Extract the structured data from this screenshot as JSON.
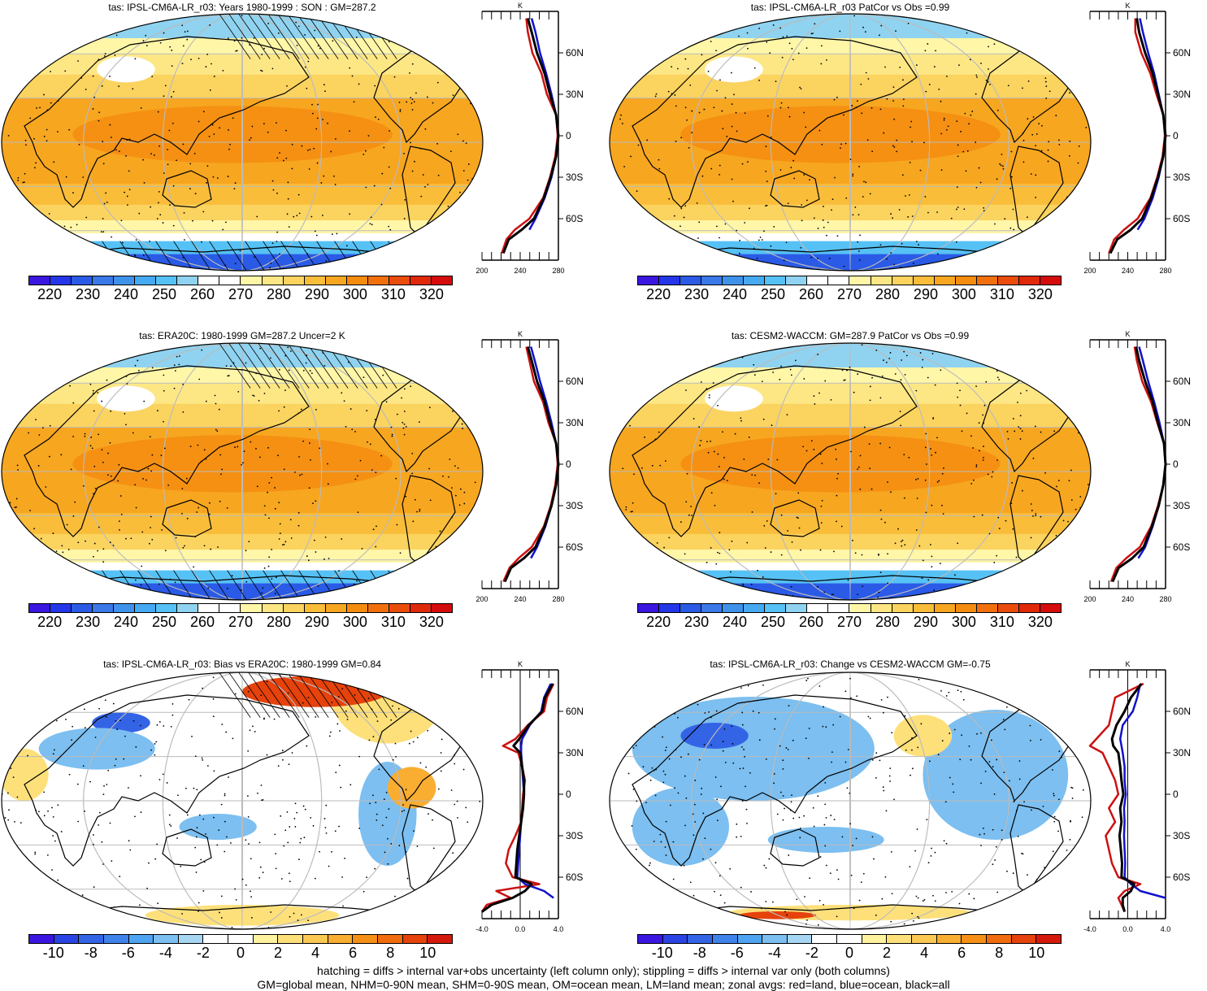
{
  "colors": {
    "abs_palette": [
      "#3b16e0",
      "#2436e8",
      "#2a5ae6",
      "#3b78e8",
      "#3f92ea",
      "#46aaf2",
      "#56c1f5",
      "#8fd3f0",
      "#ffffff",
      "#ffffff",
      "#fff6a8",
      "#fde785",
      "#fbd35f",
      "#f9bd3a",
      "#f7a620",
      "#f58c10",
      "#f1700d",
      "#ea4c0c",
      "#e0280b",
      "#d40c0c"
    ],
    "diff_palette": [
      "#3b16e0",
      "#2a44e4",
      "#3464e6",
      "#3f82ea",
      "#4ea4f0",
      "#7cbff0",
      "#a6d6f2",
      "#ffffff",
      "#ffffff",
      "#fff3a0",
      "#fde07a",
      "#fbc853",
      "#f9ad31",
      "#f58f16",
      "#f06c0e",
      "#e5420c",
      "#d41a0c"
    ],
    "land_line": "#cc1111",
    "ocean_line": "#1111cc",
    "all_line": "#000000",
    "grid": "#bbbbbb"
  },
  "panels": [
    {
      "title": "tas: IPSL-CM6A-LR_r03: Years 1980-1999 : SON : GM=287.2",
      "cbar_labels": [
        "220",
        "230",
        "240",
        "250",
        "260",
        "270",
        "280",
        "290",
        "300",
        "310",
        "320"
      ],
      "zonal_unit": "K",
      "zonal_xticks": [
        "200",
        "240",
        "280"
      ],
      "zonal_yticks": [
        "60N",
        "30N",
        "0",
        "30S",
        "60S"
      ]
    },
    {
      "title": "tas: IPSL-CM6A-LR_r03 PatCor vs Obs =0.99",
      "cbar_labels": [
        "220",
        "230",
        "240",
        "250",
        "260",
        "270",
        "280",
        "290",
        "300",
        "310",
        "320"
      ],
      "zonal_unit": "K",
      "zonal_xticks": [
        "200",
        "240",
        "280"
      ],
      "zonal_yticks": [
        "60N",
        "30N",
        "0",
        "30S",
        "60S"
      ]
    },
    {
      "title": "tas: ERA20C: 1980-1999 GM=287.2 Uncer=2 K",
      "cbar_labels": [
        "220",
        "230",
        "240",
        "250",
        "260",
        "270",
        "280",
        "290",
        "300",
        "310",
        "320"
      ],
      "zonal_unit": "K",
      "zonal_xticks": [
        "200",
        "240",
        "280"
      ],
      "zonal_yticks": [
        "60N",
        "30N",
        "0",
        "30S",
        "60S"
      ]
    },
    {
      "title": "tas: CESM2-WACCM: GM=287.9 PatCor vs Obs =0.99",
      "cbar_labels": [
        "220",
        "230",
        "240",
        "250",
        "260",
        "270",
        "280",
        "290",
        "300",
        "310",
        "320"
      ],
      "zonal_unit": "K",
      "zonal_xticks": [
        "200",
        "240",
        "280"
      ],
      "zonal_yticks": [
        "60N",
        "30N",
        "0",
        "30S",
        "60S"
      ]
    },
    {
      "title": "tas: IPSL-CM6A-LR_r03: Bias vs ERA20C: 1980-1999  GM=0.84",
      "cbar_labels": [
        "-10",
        "-8",
        "-6",
        "-4",
        "-2",
        "0",
        "2",
        "4",
        "6",
        "8",
        "10"
      ],
      "zonal_unit": "K",
      "zonal_xticks": [
        "-4.0",
        "0.0",
        "4.0"
      ],
      "zonal_yticks": [
        "60N",
        "30N",
        "0",
        "30S",
        "60S"
      ]
    },
    {
      "title": "tas: IPSL-CM6A-LR_r03: Change vs CESM2-WACCM GM=-0.75",
      "cbar_labels": [
        "-10",
        "-8",
        "-6",
        "-4",
        "-2",
        "0",
        "2",
        "4",
        "6",
        "8",
        "10"
      ],
      "zonal_unit": "K",
      "zonal_xticks": [
        "-4.0",
        "0.0",
        "4.0"
      ],
      "zonal_yticks": [
        "60N",
        "30N",
        "0",
        "30S",
        "60S"
      ]
    }
  ],
  "footer": {
    "line1": "hatching = diffs > internal var+obs uncertainty (left column only); stippling = diffs > internal var only (both columns)",
    "line2": "GM=global mean, NHM=0-90N mean, SHM=0-90S mean, OM=ocean mean, LM=land mean; zonal avgs: red=land, blue=ocean, black=all"
  },
  "chart_data": [
    {
      "type": "line",
      "title": "tas: IPSL-CM6A-LR_r03: Years 1980-1999 : SON : GM=287.2",
      "xlabel": "K",
      "xlim": [
        200,
        300
      ],
      "ylim": [
        -90,
        90
      ],
      "y_ticks": [
        60,
        30,
        0,
        -30,
        -60
      ],
      "y": [
        85,
        75,
        60,
        45,
        30,
        15,
        0,
        -15,
        -30,
        -45,
        -60,
        -68,
        -75,
        -85
      ],
      "series": [
        {
          "name": "land",
          "values": [
            258,
            260,
            266,
            278,
            285,
            297,
            299,
            296,
            289,
            280,
            262,
            243,
            232,
            226
          ]
        },
        {
          "name": "ocean",
          "values": [
            265,
            270,
            276,
            284,
            291,
            297,
            300,
            297,
            291,
            282,
            270,
            262,
            null,
            null
          ]
        },
        {
          "name": "all",
          "values": [
            260,
            265,
            272,
            282,
            289,
            297,
            300,
            297,
            290,
            281,
            268,
            252,
            235,
            228
          ]
        }
      ]
    },
    {
      "type": "line",
      "title": "tas: IPSL-CM6A-LR_r03 PatCor vs Obs =0.99",
      "xlabel": "K",
      "xlim": [
        200,
        300
      ],
      "ylim": [
        -90,
        90
      ],
      "y_ticks": [
        60,
        30,
        0,
        -30,
        -60
      ],
      "y": [
        85,
        75,
        60,
        45,
        30,
        15,
        0,
        -15,
        -30,
        -45,
        -60,
        -68,
        -75,
        -85
      ],
      "series": [
        {
          "name": "land",
          "values": [
            260,
            260,
            268,
            280,
            288,
            297,
            299,
            296,
            289,
            280,
            263,
            245,
            232,
            225
          ]
        },
        {
          "name": "ocean",
          "values": [
            266,
            270,
            277,
            285,
            291,
            297,
            300,
            297,
            291,
            283,
            272,
            263,
            null,
            null
          ]
        },
        {
          "name": "all",
          "values": [
            262,
            265,
            273,
            283,
            290,
            297,
            300,
            297,
            290,
            281,
            269,
            254,
            236,
            227
          ]
        }
      ]
    },
    {
      "type": "line",
      "title": "tas: ERA20C: 1980-1999 GM=287.2 Uncer=2 K",
      "xlabel": "K",
      "xlim": [
        200,
        300
      ],
      "ylim": [
        -90,
        90
      ],
      "y_ticks": [
        60,
        30,
        0,
        -30,
        -60
      ],
      "y": [
        85,
        75,
        60,
        45,
        30,
        15,
        0,
        -15,
        -30,
        -45,
        -60,
        -68,
        -75,
        -85
      ],
      "series": [
        {
          "name": "land",
          "values": [
            258,
            262,
            268,
            280,
            287,
            297,
            299,
            296,
            290,
            281,
            265,
            248,
            236,
            228
          ]
        },
        {
          "name": "ocean",
          "values": [
            264,
            269,
            276,
            284,
            291,
            297,
            300,
            297,
            291,
            283,
            272,
            264,
            null,
            null
          ]
        },
        {
          "name": "all",
          "values": [
            260,
            265,
            272,
            282,
            289,
            297,
            300,
            297,
            291,
            282,
            270,
            255,
            238,
            230
          ]
        }
      ]
    },
    {
      "type": "line",
      "title": "tas: CESM2-WACCM: GM=287.9 PatCor vs Obs =0.99",
      "xlabel": "K",
      "xlim": [
        200,
        300
      ],
      "ylim": [
        -90,
        90
      ],
      "y_ticks": [
        60,
        30,
        0,
        -30,
        -60
      ],
      "y": [
        85,
        75,
        60,
        45,
        30,
        15,
        0,
        -15,
        -30,
        -45,
        -60,
        -68,
        -75,
        -85
      ],
      "series": [
        {
          "name": "land",
          "values": [
            259,
            262,
            269,
            281,
            289,
            298,
            300,
            297,
            290,
            281,
            266,
            248,
            235,
            228
          ]
        },
        {
          "name": "ocean",
          "values": [
            265,
            270,
            277,
            285,
            292,
            298,
            300,
            297,
            291,
            283,
            273,
            264,
            null,
            null
          ]
        },
        {
          "name": "all",
          "values": [
            261,
            265,
            273,
            283,
            290,
            298,
            300,
            297,
            291,
            282,
            271,
            256,
            238,
            230
          ]
        }
      ]
    },
    {
      "type": "line",
      "title": "tas: IPSL-CM6A-LR_r03: Bias vs ERA20C: 1980-1999  GM=0.84",
      "xlabel": "K",
      "xlim": [
        -4,
        4
      ],
      "ylim": [
        -90,
        90
      ],
      "y_ticks": [
        60,
        30,
        0,
        -30,
        -60
      ],
      "y": [
        80,
        70,
        60,
        50,
        40,
        35,
        30,
        20,
        10,
        0,
        -10,
        -20,
        -30,
        -40,
        -50,
        -60,
        -65,
        -70,
        -75,
        -80,
        -85
      ],
      "series": [
        {
          "name": "land",
          "values": [
            3.5,
            2.8,
            2.5,
            0.8,
            -0.5,
            -1.8,
            -0.2,
            0.2,
            0.5,
            0.3,
            0.2,
            0.1,
            -0.5,
            -1.2,
            -1.5,
            -0.8,
            2.0,
            -2.5,
            -1.0,
            -3.5,
            -4.0
          ]
        },
        {
          "name": "ocean",
          "values": [
            3.2,
            2.5,
            2.2,
            1.0,
            0.2,
            0.1,
            0.1,
            0.2,
            0.3,
            0.4,
            0.3,
            0.1,
            0.0,
            -0.1,
            -0.2,
            -0.3,
            0.5,
            2.5,
            3.5,
            null,
            null
          ]
        },
        {
          "name": "all",
          "values": [
            3.4,
            2.6,
            2.3,
            0.9,
            -0.1,
            -0.7,
            0.0,
            0.2,
            0.4,
            0.4,
            0.3,
            0.1,
            -0.1,
            -0.3,
            -0.4,
            -0.5,
            1.2,
            0.5,
            -0.8,
            -3.0,
            -4.0
          ]
        }
      ]
    },
    {
      "type": "line",
      "title": "tas: IPSL-CM6A-LR_r03: Change vs CESM2-WACCM GM=-0.75",
      "xlabel": "K",
      "xlim": [
        -6,
        6
      ],
      "ylim": [
        -90,
        90
      ],
      "y_ticks": [
        60,
        30,
        0,
        -30,
        -60
      ],
      "y": [
        80,
        70,
        60,
        50,
        40,
        35,
        30,
        20,
        10,
        0,
        -10,
        -20,
        -30,
        -40,
        -50,
        -60,
        -65,
        -70,
        -75,
        -80,
        -85
      ],
      "series": [
        {
          "name": "land",
          "values": [
            2.5,
            -2.0,
            -2.5,
            -3.0,
            -5.0,
            -6.0,
            -4.0,
            -3.0,
            -2.0,
            -1.5,
            -3.0,
            -2.0,
            -3.5,
            -3.0,
            -2.5,
            -1.5,
            2.0,
            -0.5,
            -1.5,
            -1.0,
            -0.5
          ]
        },
        {
          "name": "ocean",
          "values": [
            2.0,
            1.5,
            0.8,
            -0.8,
            -1.2,
            -1.0,
            -0.8,
            -0.5,
            -0.5,
            -0.3,
            -0.6,
            -0.5,
            -0.6,
            -0.5,
            -0.4,
            -0.5,
            0.5,
            2.0,
            6.0,
            null,
            null
          ]
        },
        {
          "name": "all",
          "values": [
            2.2,
            0.5,
            -0.5,
            -1.8,
            -2.5,
            -2.3,
            -1.5,
            -1.2,
            -1.0,
            -0.7,
            -1.2,
            -1.0,
            -1.3,
            -1.1,
            -0.9,
            -1.0,
            1.0,
            0.5,
            -0.8,
            -0.8,
            -0.5
          ]
        }
      ]
    }
  ]
}
